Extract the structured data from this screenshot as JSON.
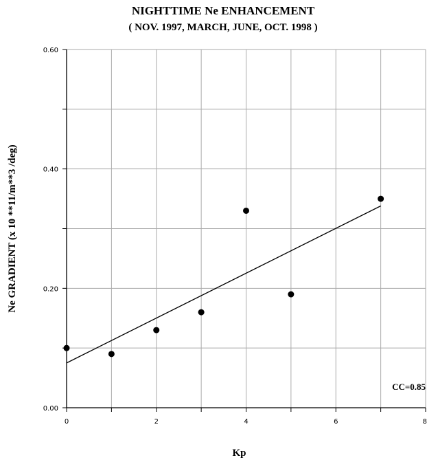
{
  "chart_data": {
    "type": "scatter",
    "title": "NIGHTTIME Ne ENHANCEMENT",
    "subtitle": "( NOV. 1997, MARCH, JUNE, OCT. 1998 )",
    "xlabel": "Kp",
    "ylabel": "Ne GRADIENT (x 10 **11/m**3 /deg)",
    "xlim": [
      0,
      8
    ],
    "ylim": [
      0,
      0.6
    ],
    "x_ticks": [
      "0",
      "2",
      "4",
      "6",
      "8"
    ],
    "y_ticks": [
      "0.00",
      "0.20",
      "0.40",
      "0.60"
    ],
    "grid": true,
    "points": [
      {
        "x": 0,
        "y": 0.1
      },
      {
        "x": 1,
        "y": 0.09
      },
      {
        "x": 2,
        "y": 0.13
      },
      {
        "x": 3,
        "y": 0.16
      },
      {
        "x": 4,
        "y": 0.33
      },
      {
        "x": 5,
        "y": 0.19
      },
      {
        "x": 7,
        "y": 0.35
      }
    ],
    "fit_line": {
      "x": [
        0,
        7
      ],
      "y": [
        0.075,
        0.338
      ]
    },
    "annotation": "CC=0.85"
  }
}
